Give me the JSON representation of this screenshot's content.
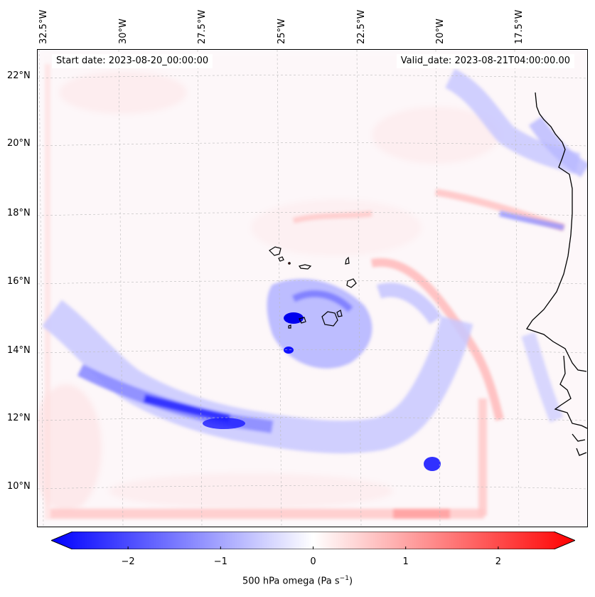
{
  "header": {
    "start_date": "Start date: 2023-08-20_00:00:00",
    "valid_date": "Valid_date: 2023-08-21T04:00:00.00"
  },
  "map": {
    "longitude_labels": [
      "32.5°W",
      "30°W",
      "27.5°W",
      "25°W",
      "22.5°W",
      "20°W",
      "17.5°W"
    ],
    "latitude_labels": [
      "22°N",
      "20°N",
      "18°N",
      "16°N",
      "14°N",
      "12°N",
      "10°N"
    ],
    "gridlines": true,
    "field": "500 hPa vertical velocity (omega)",
    "colors": {
      "negative": "#0000ff",
      "zero": "#ffffff",
      "positive": "#ff0000",
      "coastline": "#000000"
    }
  },
  "colorbar": {
    "ticks": [
      "−2",
      "−1",
      "0",
      "1",
      "2"
    ],
    "label_prefix": "500 hPa omega (Pa s",
    "label_exp": "−1",
    "label_suffix": ")",
    "range": [
      -2.6,
      2.6
    ],
    "extend": "both"
  }
}
